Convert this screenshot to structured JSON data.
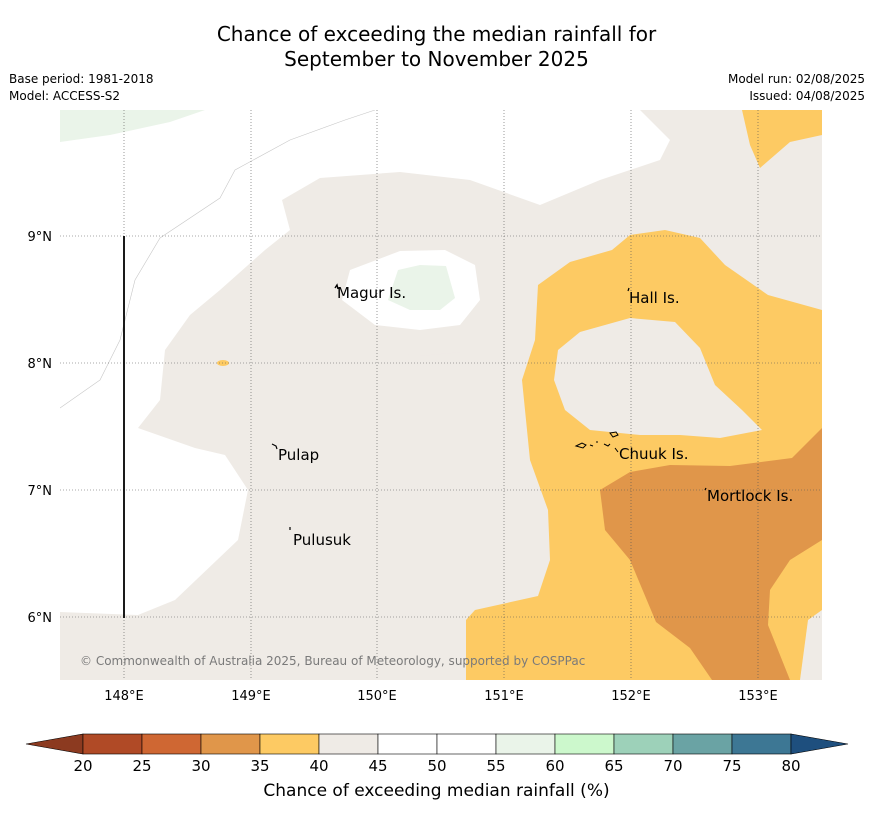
{
  "title_line1": "Chance of exceeding the median rainfall for",
  "title_line2": "September to November 2025",
  "meta": {
    "base_period": "Base period: 1981-2018",
    "model": "Model: ACCESS-S2",
    "model_run": "Model run: 02/08/2025",
    "issued": "Issued: 04/08/2025"
  },
  "attribution": "© Commonwealth of Australia 2025, Bureau of Meteorology, supported by COSPPac",
  "map": {
    "lon_ticks": [
      "148°E",
      "149°E",
      "150°E",
      "151°E",
      "152°E",
      "153°E"
    ],
    "lat_ticks": [
      "9°N",
      "8°N",
      "7°N",
      "6°N"
    ],
    "places": [
      {
        "name": "Magur Is."
      },
      {
        "name": "Hall Is."
      },
      {
        "name": "Pulap"
      },
      {
        "name": "Chuuk Is."
      },
      {
        "name": "Mortlock Is."
      },
      {
        "name": "Pulusuk"
      }
    ]
  },
  "colorbar": {
    "title": "Chance of exceeding median rainfall (%)",
    "ticks": [
      "20",
      "25",
      "30",
      "35",
      "40",
      "45",
      "50",
      "55",
      "60",
      "65",
      "70",
      "75",
      "80"
    ],
    "colors": [
      "#b04a26",
      "#cf6733",
      "#e0964a",
      "#fdca63",
      "#efebe6",
      "#ffffff",
      "#ffffff",
      "#eaf4e9",
      "#ccf8cc",
      "#9dd1b9",
      "#6aa3a4",
      "#3d7794"
    ],
    "under_color": "#8c3a20",
    "over_color": "#1e4f7e"
  }
}
